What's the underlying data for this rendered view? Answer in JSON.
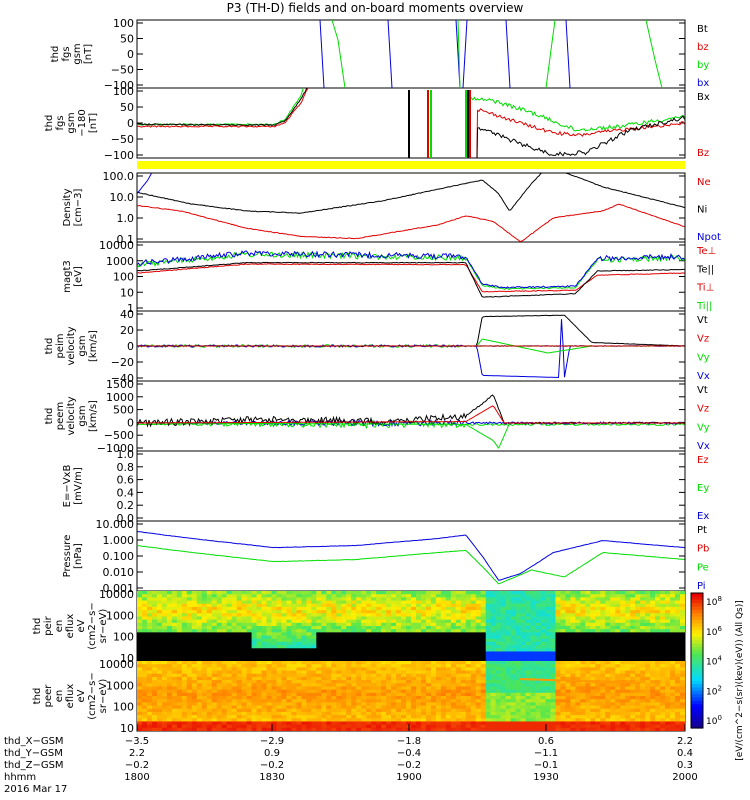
{
  "title": "P3 (TH-D) fields and on-board moments overview",
  "colors": {
    "black": "#000000",
    "red": "#e00000",
    "green": "#00dd00",
    "blue": "#0000e0",
    "yellow": "#ffff00"
  },
  "chart_data": [
    {
      "id": "fgs",
      "type": "line",
      "ylabel": [
        "thd",
        "fgs",
        "gsm",
        "[nT]"
      ],
      "yticks": [
        "100",
        "50",
        "0",
        "−50",
        "−100"
      ],
      "legend": [
        {
          "text": "Bt",
          "color": "#000000"
        },
        {
          "text": "bz",
          "color": "#e00000"
        },
        {
          "text": "by",
          "color": "#00dd00"
        },
        {
          "text": "bx",
          "color": "#0000e0"
        }
      ]
    },
    {
      "id": "fge",
      "type": "line",
      "ylabel": [
        "thd",
        "fgs",
        "gsm",
        "−180",
        "[nT]"
      ],
      "yticks": [
        "100",
        "50",
        "0",
        "−50",
        "−100"
      ],
      "legend": [
        {
          "text": "Bx",
          "color": "#000000"
        },
        {
          "text": "Bz",
          "color": "#e00000"
        }
      ]
    },
    {
      "id": "density",
      "type": "line",
      "log": true,
      "ylabel": [
        "Density",
        "[cm−3]"
      ],
      "yticks": [
        "100.0",
        "10.0",
        "1.0",
        "0.1"
      ],
      "legend": [
        {
          "text": "Ne",
          "color": "#e00000"
        },
        {
          "text": "Ni",
          "color": "#000000"
        },
        {
          "text": "Npot",
          "color": "#0000e0"
        }
      ]
    },
    {
      "id": "temp",
      "type": "line",
      "log": true,
      "ylabel": [
        "magt3",
        "[eV]"
      ],
      "yticks": [
        "10000",
        "1000",
        "100",
        "10",
        "1"
      ],
      "legend": [
        {
          "text": "Te⊥",
          "color": "#e00000"
        },
        {
          "text": "Te||",
          "color": "#000000"
        },
        {
          "text": "Ti⊥",
          "color": "#e00000"
        },
        {
          "text": "Ti||",
          "color": "#00dd00"
        }
      ]
    },
    {
      "id": "vi",
      "type": "line",
      "ylabel": [
        "thd",
        "peim",
        "velocity",
        "gsm",
        "[km/s]"
      ],
      "yticks": [
        "40",
        "20",
        "0",
        "−20",
        "−40"
      ],
      "legend": [
        {
          "text": "Vt",
          "color": "#000000"
        },
        {
          "text": "Vz",
          "color": "#e00000"
        },
        {
          "text": "Vy",
          "color": "#00dd00"
        },
        {
          "text": "Vx",
          "color": "#0000e0"
        }
      ]
    },
    {
      "id": "ve",
      "type": "line",
      "ylabel": [
        "thd",
        "peem",
        "velocity",
        "gsm",
        "[km/s]"
      ],
      "yticks": [
        "1500",
        "1000",
        "500",
        "0",
        "−500",
        "−1000"
      ],
      "legend": [
        {
          "text": "Vt",
          "color": "#000000"
        },
        {
          "text": "Vz",
          "color": "#e00000"
        },
        {
          "text": "Vy",
          "color": "#00dd00"
        },
        {
          "text": "Vx",
          "color": "#0000e0"
        }
      ]
    },
    {
      "id": "efield",
      "type": "line",
      "ylabel": [
        "E=−VxB",
        "[mV/m]"
      ],
      "yticks": [
        "1.0",
        "0.8",
        "0.6",
        "0.4",
        "0.2",
        "0.0"
      ],
      "legend": [
        {
          "text": "Ez",
          "color": "#e00000"
        },
        {
          "text": "Ey",
          "color": "#00dd00"
        },
        {
          "text": "Ex",
          "color": "#0000e0"
        }
      ]
    },
    {
      "id": "pressure",
      "type": "line",
      "log": true,
      "ylabel": [
        "Pressure",
        "[nPa]"
      ],
      "yticks": [
        "10.000",
        "1.000",
        "0.100",
        "0.010",
        "0.001"
      ],
      "legend": [
        {
          "text": "Pt",
          "color": "#000000"
        },
        {
          "text": "Pb",
          "color": "#e00000"
        },
        {
          "text": "Pe",
          "color": "#00dd00"
        },
        {
          "text": "Pi",
          "color": "#0000e0"
        }
      ]
    },
    {
      "id": "ion_spec",
      "type": "heatmap",
      "ylabel": [
        "thd",
        "peir",
        "en",
        "eflux",
        "eV",
        "(cm2−s−",
        "sr−eV)"
      ],
      "yticks": [
        "10000",
        "1000",
        "100",
        "10"
      ]
    },
    {
      "id": "elec_spec",
      "type": "heatmap",
      "ylabel": [
        "thd",
        "peer",
        "en",
        "eflux",
        "eV",
        "(cm2−s−",
        "sr−eV)"
      ],
      "yticks": [
        "10000",
        "1000",
        "100",
        "10"
      ]
    },
    {
      "id": "colorbar",
      "type": "colorbar",
      "label": "[eV/(cm^2−s(sr)(kev)(eV)) (All Qs)]",
      "ticks": [
        "10^8",
        "10^6",
        "10^4",
        "10^2",
        "10^0"
      ]
    },
    {
      "id": "xaxis",
      "type": "axis",
      "rows": [
        {
          "label": "thd_X−GSM",
          "values": [
            "−3.5",
            "−2.9",
            "−1.8",
            "0.6",
            "2.2"
          ]
        },
        {
          "label": "thd_Y−GSM",
          "values": [
            "2.2",
            "0.9",
            "−0.4",
            "−1.1",
            "0.4"
          ]
        },
        {
          "label": "thd_Z−GSM",
          "values": [
            "−0.2",
            "−0.2",
            "−0.2",
            "−0.1",
            "0.3"
          ]
        },
        {
          "label": "hhmm",
          "values": [
            "1800",
            "1830",
            "1900",
            "1930",
            "2000"
          ]
        }
      ],
      "date": "2016 Mar 17"
    }
  ]
}
